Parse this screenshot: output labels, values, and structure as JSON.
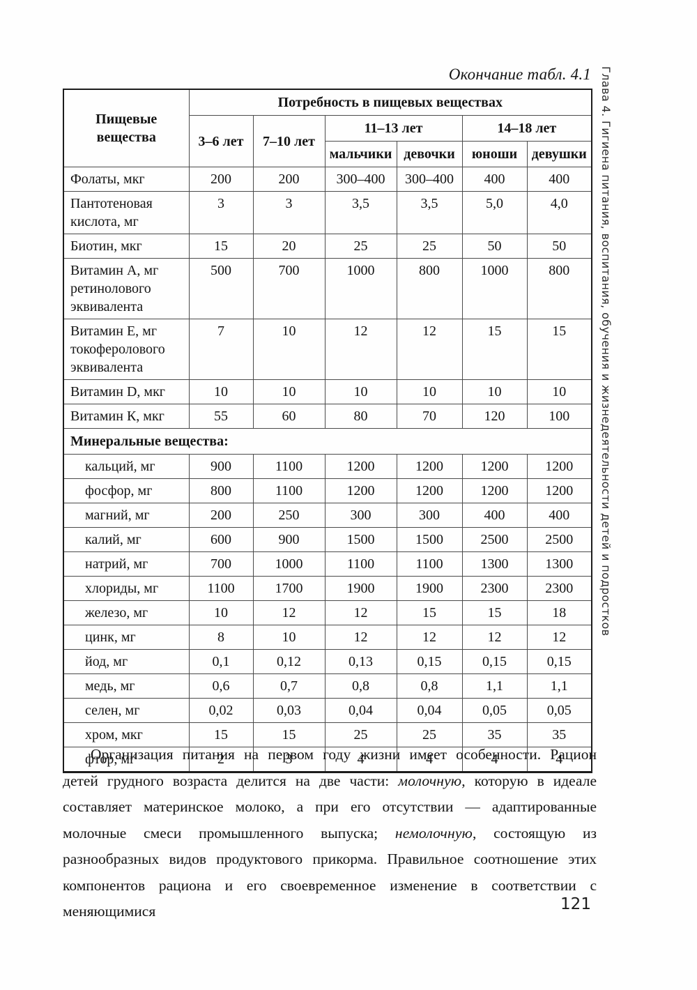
{
  "page": {
    "caption": "Окончание табл. 4.1",
    "page_number": "121",
    "sidebar_text": "Глава 4. Гигиена питания, воспитания, обучения и жизнедеятельности детей и подростков"
  },
  "table": {
    "col1_header": "Пищевые вещества",
    "span_header": "Потребность в пищевых веществах",
    "age_groups": [
      "3–6 лет",
      "7–10 лет",
      "11–13 лет",
      "14–18 лет"
    ],
    "subgroups": [
      "мальчики",
      "девочки",
      "юноши",
      "девушки"
    ],
    "rows": [
      {
        "label": "Фолаты, мкг",
        "values": [
          "200",
          "200",
          "300–400",
          "300–400",
          "400",
          "400"
        ]
      },
      {
        "label": "Пантотеновая кислота, мг",
        "values": [
          "3",
          "3",
          "3,5",
          "3,5",
          "5,0",
          "4,0"
        ]
      },
      {
        "label": "Биотин, мкг",
        "values": [
          "15",
          "20",
          "25",
          "25",
          "50",
          "50"
        ]
      },
      {
        "label": "Витамин А, мг ретинолового эквивалента",
        "values": [
          "500",
          "700",
          "1000",
          "800",
          "1000",
          "800"
        ]
      },
      {
        "label": "Витамин Е, мг токоферолового эквивалента",
        "values": [
          "7",
          "10",
          "12",
          "12",
          "15",
          "15"
        ]
      },
      {
        "label": "Витамин D, мкг",
        "values": [
          "10",
          "10",
          "10",
          "10",
          "10",
          "10"
        ]
      },
      {
        "label": "Витамин К, мкг",
        "values": [
          "55",
          "60",
          "80",
          "70",
          "120",
          "100"
        ]
      },
      {
        "section": "Минеральные вещества:"
      },
      {
        "label": "кальций, мг",
        "indent": true,
        "values": [
          "900",
          "1100",
          "1200",
          "1200",
          "1200",
          "1200"
        ]
      },
      {
        "label": "фосфор, мг",
        "indent": true,
        "values": [
          "800",
          "1100",
          "1200",
          "1200",
          "1200",
          "1200"
        ]
      },
      {
        "label": "магний, мг",
        "indent": true,
        "values": [
          "200",
          "250",
          "300",
          "300",
          "400",
          "400"
        ]
      },
      {
        "label": "калий, мг",
        "indent": true,
        "values": [
          "600",
          "900",
          "1500",
          "1500",
          "2500",
          "2500"
        ]
      },
      {
        "label": "натрий, мг",
        "indent": true,
        "values": [
          "700",
          "1000",
          "1100",
          "1100",
          "1300",
          "1300"
        ]
      },
      {
        "label": "хлориды, мг",
        "indent": true,
        "values": [
          "1100",
          "1700",
          "1900",
          "1900",
          "2300",
          "2300"
        ]
      },
      {
        "label": "железо, мг",
        "indent": true,
        "values": [
          "10",
          "12",
          "12",
          "15",
          "15",
          "18"
        ]
      },
      {
        "label": "цинк, мг",
        "indent": true,
        "values": [
          "8",
          "10",
          "12",
          "12",
          "12",
          "12"
        ]
      },
      {
        "label": "йод, мг",
        "indent": true,
        "values": [
          "0,1",
          "0,12",
          "0,13",
          "0,15",
          "0,15",
          "0,15"
        ]
      },
      {
        "label": "медь, мг",
        "indent": true,
        "values": [
          "0,6",
          "0,7",
          "0,8",
          "0,8",
          "1,1",
          "1,1"
        ]
      },
      {
        "label": "селен, мг",
        "indent": true,
        "values": [
          "0,02",
          "0,03",
          "0,04",
          "0,04",
          "0,05",
          "0,05"
        ]
      },
      {
        "label": "хром, мкг",
        "indent": true,
        "values": [
          "15",
          "15",
          "25",
          "25",
          "35",
          "35"
        ]
      },
      {
        "label": "фтор, мг",
        "indent": true,
        "values": [
          "2",
          "3",
          "4",
          "4",
          "4",
          "4"
        ]
      }
    ]
  },
  "body": {
    "parts": [
      {
        "text": "Организация питания на первом году жизни имеет особенности. Рацион детей грудного возраста делится на две части: ",
        "italic": false
      },
      {
        "text": "молочную",
        "italic": true
      },
      {
        "text": ", которую в идеале составляет материнское молоко, а при его отсутствии — адаптированные молочные смеси промышленного выпуска; ",
        "italic": false
      },
      {
        "text": "немолочную",
        "italic": true
      },
      {
        "text": ", состоящую из разнообразных видов продуктового прикорма. Правильное соотношение этих компонентов рациона и его своевременное изменение в соответствии с меняющимися",
        "italic": false
      }
    ]
  }
}
